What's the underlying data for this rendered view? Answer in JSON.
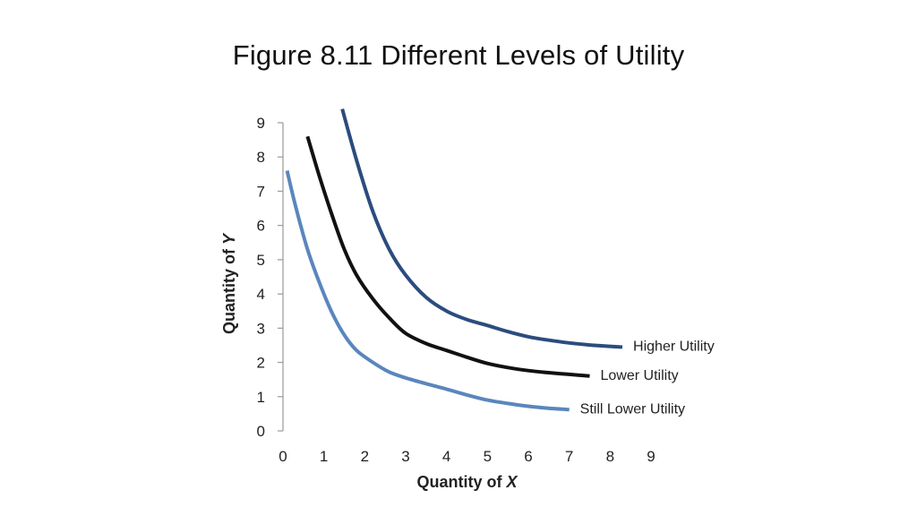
{
  "title": "Figure 8.11 Different Levels of Utility",
  "chart_data": {
    "type": "line",
    "title": "Figure 8.11 Different Levels of Utility",
    "xlabel": "Quantity of X",
    "ylabel": "Quantity of Y",
    "xlim": [
      0,
      9
    ],
    "ylim": [
      0,
      9
    ],
    "x_ticks": [
      0,
      1,
      2,
      3,
      4,
      5,
      6,
      7,
      8,
      9
    ],
    "y_ticks": [
      0,
      1,
      2,
      3,
      4,
      5,
      6,
      7,
      8,
      9
    ],
    "grid": false,
    "series": [
      {
        "name": "Higher Utility",
        "color": "#2b4c7e",
        "points": [
          [
            1.45,
            9.4
          ],
          [
            1.8,
            7.9
          ],
          [
            2.2,
            6.4
          ],
          [
            2.6,
            5.3
          ],
          [
            3.0,
            4.55
          ],
          [
            3.5,
            3.9
          ],
          [
            4.0,
            3.5
          ],
          [
            4.5,
            3.25
          ],
          [
            5.0,
            3.08
          ],
          [
            5.5,
            2.9
          ],
          [
            6.0,
            2.75
          ],
          [
            6.5,
            2.65
          ],
          [
            7.0,
            2.57
          ],
          [
            7.5,
            2.51
          ],
          [
            8.0,
            2.47
          ],
          [
            8.3,
            2.45
          ]
        ]
      },
      {
        "name": "Lower Utility",
        "color": "#111111",
        "points": [
          [
            0.6,
            8.6
          ],
          [
            0.9,
            7.4
          ],
          [
            1.2,
            6.3
          ],
          [
            1.5,
            5.3
          ],
          [
            1.8,
            4.55
          ],
          [
            2.2,
            3.85
          ],
          [
            2.6,
            3.3
          ],
          [
            3.0,
            2.85
          ],
          [
            3.5,
            2.55
          ],
          [
            4.0,
            2.35
          ],
          [
            4.5,
            2.15
          ],
          [
            5.0,
            1.97
          ],
          [
            5.5,
            1.85
          ],
          [
            6.0,
            1.76
          ],
          [
            6.5,
            1.7
          ],
          [
            7.0,
            1.65
          ],
          [
            7.5,
            1.6
          ]
        ]
      },
      {
        "name": "Still Lower Utility",
        "color": "#5a86bd",
        "points": [
          [
            0.1,
            7.6
          ],
          [
            0.3,
            6.6
          ],
          [
            0.6,
            5.3
          ],
          [
            0.9,
            4.3
          ],
          [
            1.2,
            3.45
          ],
          [
            1.5,
            2.8
          ],
          [
            1.8,
            2.35
          ],
          [
            2.2,
            2.0
          ],
          [
            2.6,
            1.72
          ],
          [
            3.0,
            1.55
          ],
          [
            3.5,
            1.38
          ],
          [
            4.0,
            1.22
          ],
          [
            4.5,
            1.05
          ],
          [
            5.0,
            0.9
          ],
          [
            5.5,
            0.8
          ],
          [
            6.0,
            0.72
          ],
          [
            6.5,
            0.66
          ],
          [
            7.0,
            0.62
          ]
        ]
      }
    ]
  }
}
